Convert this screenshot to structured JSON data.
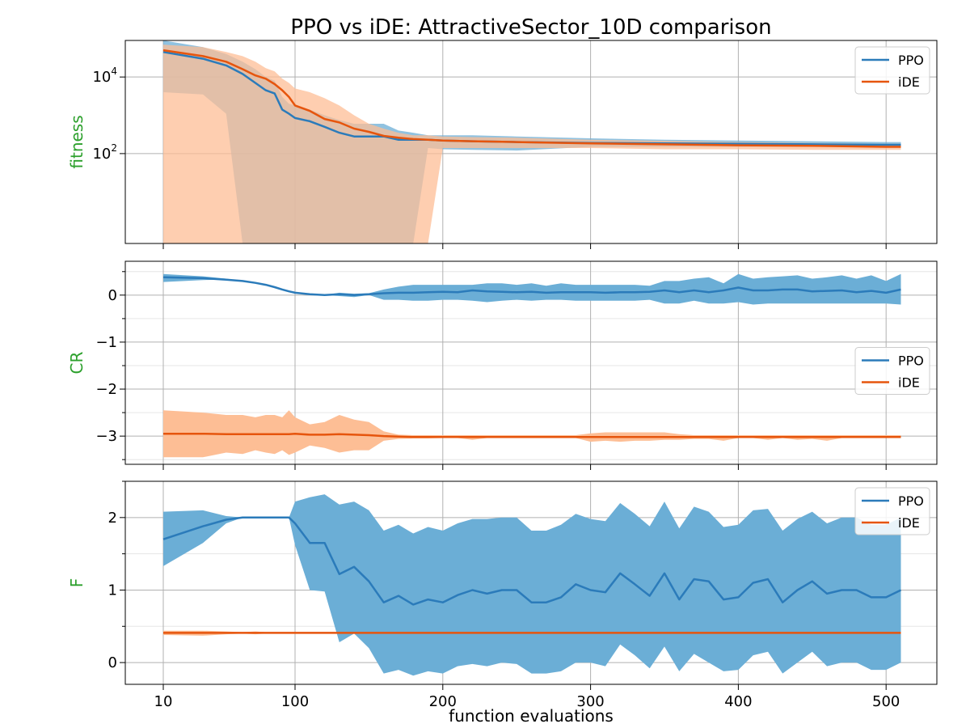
{
  "title": "PPO vs iDE: AttractiveSector_10D comparison",
  "xlabel": "function evaluations",
  "colors": {
    "ppo_line": "#2b7bba",
    "ppo_band": "#6baed6",
    "ide_line": "#e6550d",
    "ide_band": "#fdbe95",
    "overlap_band": "#b3a08f",
    "ylabel": "#2ca02c",
    "grid": "#b0b0b0",
    "minor_grid": "#e6e6e6"
  },
  "legend": {
    "ppo": "PPO",
    "ide": "iDE"
  },
  "chart_data": [
    {
      "type": "line",
      "name": "fitness",
      "ylabel": "fitness",
      "yscale": "log",
      "ylim": [
        0.45,
        90000
      ],
      "yticks": [
        {
          "value": 100,
          "label": "10",
          "sup": "2"
        },
        {
          "value": 10000,
          "label": "10",
          "sup": "4"
        }
      ],
      "x": [
        10,
        20,
        30,
        40,
        50,
        60,
        70,
        80,
        90,
        100,
        110,
        120,
        130,
        140,
        150,
        160,
        170,
        180,
        190,
        200,
        220,
        250,
        300,
        350,
        400,
        450,
        500,
        510
      ],
      "series": [
        {
          "name": "PPO",
          "values": [
            45000,
            30000,
            20000,
            12000,
            7000,
            4500,
            3700,
            1400,
            1100,
            850,
            700,
            500,
            350,
            280,
            280,
            280,
            230,
            230,
            230,
            220,
            210,
            200,
            190,
            185,
            180,
            175,
            170,
            170
          ],
          "band_low": [
            4000,
            3500,
            1100,
            0.45,
            0.45,
            0.45,
            0.45,
            0.45,
            0.45,
            0.45,
            0.45,
            0.45,
            0.45,
            0.45,
            0.45,
            0.45,
            0.45,
            0.45,
            140,
            130,
            125,
            120,
            150,
            150,
            150,
            150,
            150,
            150
          ],
          "band_high": [
            90000,
            60000,
            40000,
            25000,
            16000,
            10000,
            8000,
            3000,
            2000,
            1800,
            1400,
            1000,
            750,
            600,
            600,
            600,
            400,
            350,
            300,
            300,
            300,
            280,
            250,
            230,
            220,
            210,
            200,
            200
          ]
        },
        {
          "name": "iDE",
          "values": [
            50000,
            35000,
            25000,
            16000,
            11000,
            9000,
            6500,
            4500,
            3000,
            1800,
            1300,
            800,
            650,
            450,
            370,
            290,
            260,
            240,
            230,
            220,
            210,
            200,
            185,
            175,
            165,
            160,
            150,
            150
          ],
          "band_low": [
            0.45,
            0.45,
            0.45,
            0.45,
            0.45,
            0.45,
            0.45,
            0.45,
            0.45,
            0.45,
            0.45,
            0.45,
            0.45,
            0.45,
            0.45,
            0.45,
            0.45,
            0.45,
            0.45,
            140,
            140,
            140,
            140,
            130,
            130,
            125,
            125,
            125
          ],
          "band_high": [
            70000,
            60000,
            45000,
            35000,
            25000,
            17000,
            14000,
            9000,
            7000,
            5000,
            4000,
            2800,
            1800,
            1000,
            600,
            450,
            350,
            300,
            300,
            280,
            270,
            260,
            230,
            215,
            200,
            190,
            180,
            180
          ]
        }
      ],
      "legend_position": "top-right"
    },
    {
      "type": "line",
      "name": "CR",
      "ylabel": "CR",
      "yscale": "linear",
      "ylim": [
        -3.6,
        0.72
      ],
      "yticks": [
        {
          "value": 0,
          "label": "0"
        },
        {
          "value": -1,
          "label": "−1"
        },
        {
          "value": -2,
          "label": "−2"
        },
        {
          "value": -3,
          "label": "−3"
        }
      ],
      "x": [
        10,
        20,
        30,
        40,
        50,
        60,
        70,
        80,
        90,
        100,
        110,
        120,
        130,
        140,
        150,
        160,
        170,
        180,
        190,
        200,
        210,
        220,
        230,
        240,
        250,
        260,
        270,
        280,
        290,
        300,
        310,
        320,
        330,
        340,
        350,
        360,
        370,
        380,
        390,
        400,
        410,
        420,
        430,
        440,
        450,
        460,
        470,
        480,
        490,
        500,
        510
      ],
      "series": [
        {
          "name": "PPO",
          "values": [
            0.38,
            0.36,
            0.33,
            0.3,
            0.26,
            0.22,
            0.17,
            0.12,
            0.08,
            0.05,
            0.02,
            0.0,
            0.02,
            0.0,
            0.02,
            0.04,
            0.05,
            0.05,
            0.06,
            0.07,
            0.06,
            0.1,
            0.08,
            0.07,
            0.06,
            0.07,
            0.05,
            0.06,
            0.06,
            0.06,
            0.05,
            0.06,
            0.06,
            0.07,
            0.1,
            0.06,
            0.1,
            0.06,
            0.1,
            0.16,
            0.1,
            0.1,
            0.12,
            0.12,
            0.08,
            0.09,
            0.1,
            0.06,
            0.09,
            0.05,
            0.12
          ],
          "band_low": [
            0.28,
            0.32,
            0.33,
            0.3,
            0.26,
            0.22,
            0.17,
            0.12,
            0.08,
            0.05,
            0.02,
            0.0,
            -0.02,
            -0.04,
            0.0,
            -0.1,
            -0.1,
            -0.12,
            -0.12,
            -0.1,
            -0.1,
            -0.12,
            -0.15,
            -0.12,
            -0.1,
            -0.12,
            -0.1,
            -0.1,
            -0.12,
            -0.12,
            -0.12,
            -0.12,
            -0.12,
            -0.1,
            -0.18,
            -0.18,
            -0.12,
            -0.18,
            -0.18,
            -0.15,
            -0.2,
            -0.18,
            -0.18,
            -0.18,
            -0.18,
            -0.18,
            -0.18,
            -0.18,
            -0.18,
            -0.18,
            -0.2
          ],
          "band_high": [
            0.45,
            0.4,
            0.35,
            0.3,
            0.26,
            0.22,
            0.17,
            0.12,
            0.08,
            0.05,
            0.02,
            0.0,
            0.05,
            0.03,
            0.04,
            0.12,
            0.18,
            0.22,
            0.22,
            0.22,
            0.22,
            0.22,
            0.25,
            0.25,
            0.22,
            0.25,
            0.2,
            0.25,
            0.22,
            0.22,
            0.22,
            0.22,
            0.22,
            0.2,
            0.3,
            0.3,
            0.35,
            0.38,
            0.25,
            0.45,
            0.35,
            0.38,
            0.4,
            0.42,
            0.35,
            0.38,
            0.42,
            0.35,
            0.42,
            0.3,
            0.45
          ]
        },
        {
          "name": "iDE",
          "values": [
            -2.95,
            -2.95,
            -2.96,
            -2.96,
            -2.96,
            -2.96,
            -2.96,
            -2.96,
            -2.96,
            -2.95,
            -2.97,
            -2.97,
            -2.96,
            -2.97,
            -2.98,
            -3.0,
            -3.01,
            -3.02,
            -3.02,
            -3.02,
            -3.02,
            -3.02,
            -3.02,
            -3.02,
            -3.02,
            -3.02,
            -3.02,
            -3.02,
            -3.02,
            -3.02,
            -3.02,
            -3.02,
            -3.02,
            -3.02,
            -3.02,
            -3.02,
            -3.02,
            -3.02,
            -3.02,
            -3.02,
            -3.02,
            -3.02,
            -3.02,
            -3.02,
            -3.02,
            -3.02,
            -3.02,
            -3.02,
            -3.02,
            -3.02,
            -3.02
          ],
          "band_low": [
            -3.45,
            -3.45,
            -3.35,
            -3.38,
            -3.3,
            -3.35,
            -3.38,
            -3.3,
            -3.4,
            -3.35,
            -3.2,
            -3.25,
            -3.35,
            -3.3,
            -3.3,
            -3.1,
            -3.06,
            -3.05,
            -3.05,
            -3.04,
            -3.04,
            -3.08,
            -3.04,
            -3.04,
            -3.04,
            -3.04,
            -3.04,
            -3.04,
            -3.04,
            -3.12,
            -3.1,
            -3.12,
            -3.1,
            -3.1,
            -3.08,
            -3.08,
            -3.06,
            -3.06,
            -3.1,
            -3.04,
            -3.04,
            -3.08,
            -3.04,
            -3.08,
            -3.06,
            -3.1,
            -3.04,
            -3.04,
            -3.04,
            -3.04,
            -3.04
          ],
          "band_high": [
            -2.45,
            -2.5,
            -2.55,
            -2.55,
            -2.6,
            -2.55,
            -2.55,
            -2.6,
            -2.45,
            -2.6,
            -2.75,
            -2.7,
            -2.55,
            -2.65,
            -2.7,
            -2.9,
            -2.97,
            -2.98,
            -2.98,
            -2.98,
            -2.98,
            -2.98,
            -2.98,
            -2.98,
            -2.98,
            -2.98,
            -2.98,
            -2.98,
            -2.98,
            -2.94,
            -2.92,
            -2.92,
            -2.92,
            -2.92,
            -2.92,
            -2.96,
            -2.98,
            -2.98,
            -2.98,
            -2.98,
            -2.98,
            -2.98,
            -2.98,
            -2.98,
            -2.98,
            -2.98,
            -2.98,
            -2.98,
            -2.98,
            -2.98,
            -2.98
          ]
        }
      ],
      "legend_position": "center-right"
    },
    {
      "type": "line",
      "name": "F",
      "ylabel": "F",
      "yscale": "linear",
      "ylim": [
        -0.3,
        2.5
      ],
      "yticks": [
        {
          "value": 0,
          "label": "0"
        },
        {
          "value": 1,
          "label": "1"
        },
        {
          "value": 2,
          "label": "2"
        }
      ],
      "x": [
        10,
        20,
        30,
        40,
        50,
        60,
        70,
        80,
        90,
        100,
        110,
        120,
        130,
        140,
        150,
        160,
        170,
        180,
        190,
        200,
        210,
        220,
        230,
        240,
        250,
        260,
        270,
        280,
        290,
        300,
        310,
        320,
        330,
        340,
        350,
        360,
        370,
        380,
        390,
        400,
        410,
        420,
        430,
        440,
        450,
        460,
        470,
        480,
        490,
        500,
        510
      ],
      "series": [
        {
          "name": "PPO",
          "values": [
            1.7,
            1.88,
            1.97,
            2.0,
            2.0,
            2.0,
            2.0,
            2.0,
            2.0,
            1.92,
            1.65,
            1.65,
            1.22,
            1.32,
            1.12,
            0.83,
            0.92,
            0.8,
            0.87,
            0.83,
            0.93,
            1.0,
            0.95,
            1.0,
            1.0,
            0.83,
            0.83,
            0.9,
            1.08,
            1.0,
            0.97,
            1.23,
            1.08,
            0.92,
            1.23,
            0.87,
            1.15,
            1.12,
            0.87,
            0.9,
            1.1,
            1.15,
            0.83,
            1.0,
            1.12,
            0.95,
            1.0,
            1.0,
            0.9,
            0.9,
            1.0
          ],
          "band_low": [
            1.33,
            1.65,
            1.92,
            2.0,
            2.0,
            2.0,
            2.0,
            2.0,
            2.0,
            1.62,
            1.0,
            0.98,
            0.28,
            0.4,
            0.2,
            -0.15,
            -0.1,
            -0.18,
            -0.12,
            -0.15,
            -0.05,
            -0.02,
            -0.05,
            0.0,
            -0.02,
            -0.15,
            -0.15,
            -0.12,
            0.0,
            0.0,
            -0.05,
            0.25,
            0.1,
            -0.08,
            0.22,
            -0.12,
            0.12,
            0.0,
            -0.12,
            -0.1,
            0.1,
            0.15,
            -0.15,
            0.0,
            0.15,
            -0.05,
            0.0,
            0.0,
            -0.1,
            -0.1,
            0.0
          ],
          "band_high": [
            2.08,
            2.1,
            2.02,
            2.0,
            2.0,
            2.0,
            2.0,
            2.0,
            2.0,
            2.22,
            2.28,
            2.32,
            2.18,
            2.22,
            2.1,
            1.82,
            1.9,
            1.78,
            1.87,
            1.82,
            1.92,
            1.98,
            1.98,
            2.0,
            2.0,
            1.82,
            1.82,
            1.9,
            2.05,
            1.98,
            1.95,
            2.2,
            2.05,
            1.88,
            2.22,
            1.85,
            2.15,
            2.08,
            1.87,
            1.9,
            2.1,
            2.12,
            1.82,
            1.98,
            2.08,
            1.92,
            2.0,
            2.0,
            1.9,
            1.9,
            2.0
          ]
        },
        {
          "name": "iDE",
          "values": [
            0.41,
            0.41,
            0.41,
            0.41,
            0.41,
            0.41,
            0.41,
            0.41,
            0.41,
            0.41,
            0.41,
            0.41,
            0.41,
            0.41,
            0.41,
            0.41,
            0.41,
            0.41,
            0.41,
            0.41,
            0.41,
            0.41,
            0.41,
            0.41,
            0.41,
            0.41,
            0.41,
            0.41,
            0.41,
            0.41,
            0.41,
            0.41,
            0.41,
            0.41,
            0.41,
            0.41,
            0.41,
            0.41,
            0.41,
            0.41,
            0.41,
            0.41,
            0.41,
            0.41,
            0.41,
            0.41,
            0.41,
            0.41,
            0.41,
            0.41,
            0.41
          ],
          "band_low": [
            0.38,
            0.37,
            0.39,
            0.4,
            0.39,
            0.4,
            0.4,
            0.4,
            0.4,
            0.4,
            0.4,
            0.4,
            0.4,
            0.4,
            0.4,
            0.4,
            0.4,
            0.4,
            0.4,
            0.4,
            0.4,
            0.4,
            0.4,
            0.4,
            0.4,
            0.4,
            0.4,
            0.4,
            0.4,
            0.4,
            0.4,
            0.4,
            0.4,
            0.4,
            0.4,
            0.4,
            0.4,
            0.4,
            0.4,
            0.4,
            0.4,
            0.4,
            0.4,
            0.4,
            0.4,
            0.4,
            0.4,
            0.4,
            0.4,
            0.4,
            0.4
          ],
          "band_high": [
            0.44,
            0.44,
            0.43,
            0.42,
            0.43,
            0.42,
            0.42,
            0.42,
            0.42,
            0.42,
            0.42,
            0.42,
            0.42,
            0.42,
            0.42,
            0.42,
            0.42,
            0.42,
            0.42,
            0.42,
            0.42,
            0.42,
            0.42,
            0.42,
            0.42,
            0.42,
            0.42,
            0.42,
            0.42,
            0.42,
            0.42,
            0.42,
            0.42,
            0.42,
            0.42,
            0.42,
            0.42,
            0.42,
            0.42,
            0.42,
            0.42,
            0.42,
            0.42,
            0.42,
            0.42,
            0.42,
            0.42,
            0.42,
            0.42,
            0.42,
            0.42
          ]
        }
      ],
      "legend_position": "top-right"
    }
  ],
  "x_axis": {
    "scale": "log10-then-linear",
    "xlim": [
      7,
      535
    ],
    "ticks": [
      {
        "value": 10,
        "label": "10"
      },
      {
        "value": 100,
        "label": "100"
      },
      {
        "value": 200,
        "label": "200"
      },
      {
        "value": 300,
        "label": "300"
      },
      {
        "value": 400,
        "label": "400"
      },
      {
        "value": 500,
        "label": "500"
      }
    ]
  }
}
